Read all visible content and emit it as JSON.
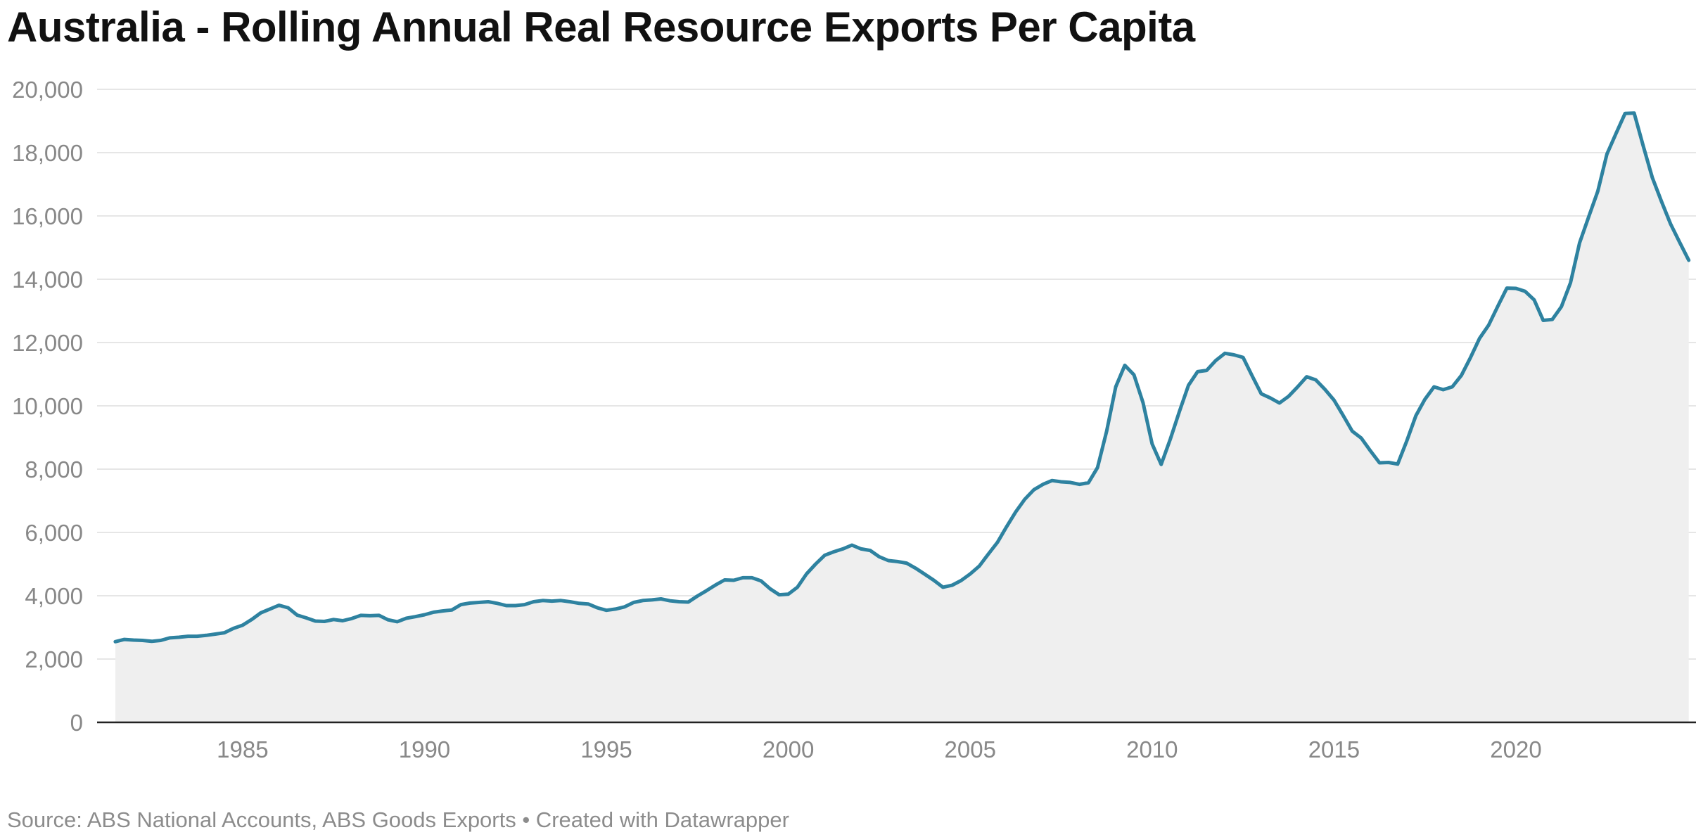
{
  "chart_data": {
    "type": "area",
    "title": "Australia - Rolling Annual Real Resource Exports Per Capita",
    "source": "Source: ABS National Accounts, ABS Goods Exports • Created with Datawrapper",
    "xlabel": "",
    "ylabel": "",
    "xlim": [
      1981.0,
      2024.95
    ],
    "ylim": [
      0,
      20000
    ],
    "y_ticks": [
      0,
      2000,
      4000,
      6000,
      8000,
      10000,
      12000,
      14000,
      16000,
      18000,
      20000
    ],
    "y_tick_labels": [
      "0",
      "2,000",
      "4,000",
      "6,000",
      "8,000",
      "10,000",
      "12,000",
      "14,000",
      "16,000",
      "18,000",
      "20,000"
    ],
    "x_ticks": [
      1985,
      1990,
      1995,
      2000,
      2005,
      2010,
      2015,
      2020
    ],
    "x_tick_labels": [
      "1985",
      "1990",
      "1995",
      "2000",
      "2005",
      "2010",
      "2015",
      "2020"
    ],
    "grid": true,
    "colors": {
      "line": "#2e82a0",
      "area": "#efefef",
      "grid": "#dddddd",
      "axis": "#222222"
    },
    "series": [
      {
        "name": "Rolling annual real resource exports per capita",
        "x": [
          1981.5,
          1981.75,
          1982.0,
          1982.25,
          1982.5,
          1982.75,
          1983.0,
          1983.25,
          1983.5,
          1983.75,
          1984.0,
          1984.25,
          1984.5,
          1984.75,
          1985.0,
          1985.25,
          1985.5,
          1985.75,
          1986.0,
          1986.25,
          1986.5,
          1986.75,
          1987.0,
          1987.25,
          1987.5,
          1987.75,
          1988.0,
          1988.25,
          1988.5,
          1988.75,
          1989.0,
          1989.25,
          1989.5,
          1989.75,
          1990.0,
          1990.25,
          1990.5,
          1990.75,
          1991.0,
          1991.25,
          1991.5,
          1991.75,
          1992.0,
          1992.25,
          1992.5,
          1992.75,
          1993.0,
          1993.25,
          1993.5,
          1993.75,
          1994.0,
          1994.25,
          1994.5,
          1994.75,
          1995.0,
          1995.25,
          1995.5,
          1995.75,
          1996.0,
          1996.25,
          1996.5,
          1996.75,
          1997.0,
          1997.25,
          1997.5,
          1997.75,
          1998.0,
          1998.25,
          1998.5,
          1998.75,
          1999.0,
          1999.25,
          1999.5,
          1999.75,
          2000.0,
          2000.25,
          2000.5,
          2000.75,
          2001.0,
          2001.25,
          2001.5,
          2001.75,
          2002.0,
          2002.25,
          2002.5,
          2002.75,
          2003.0,
          2003.25,
          2003.5,
          2003.75,
          2004.0,
          2004.25,
          2004.5,
          2004.75,
          2005.0,
          2005.25,
          2005.5,
          2005.75,
          2006.0,
          2006.25,
          2006.5,
          2006.75,
          2007.0,
          2007.25,
          2007.5,
          2007.75,
          2008.0,
          2008.25,
          2008.5,
          2008.75,
          2009.0,
          2009.25,
          2009.5,
          2009.75,
          2010.0,
          2010.25,
          2010.5,
          2010.75,
          2011.0,
          2011.25,
          2011.5,
          2011.75,
          2012.0,
          2012.25,
          2012.5,
          2012.75,
          2013.0,
          2013.25,
          2013.5,
          2013.75,
          2014.0,
          2014.25,
          2014.5,
          2014.75,
          2015.0,
          2015.25,
          2015.5,
          2015.75,
          2016.0,
          2016.25,
          2016.5,
          2016.75,
          2017.0,
          2017.25,
          2017.5,
          2017.75,
          2018.0,
          2018.25,
          2018.5,
          2018.75,
          2019.0,
          2019.25,
          2019.5,
          2019.75,
          2020.0,
          2020.25,
          2020.5,
          2020.75,
          2021.0,
          2021.25,
          2021.5,
          2021.75,
          2022.0,
          2022.25,
          2022.5,
          2022.75,
          2023.0,
          2023.25,
          2023.5,
          2023.75,
          2024.0,
          2024.25,
          2024.5,
          2024.75
        ],
        "values": [
          2550,
          2620,
          2600,
          2590,
          2560,
          2590,
          2670,
          2690,
          2720,
          2720,
          2750,
          2790,
          2830,
          2970,
          3070,
          3250,
          3460,
          3580,
          3700,
          3620,
          3390,
          3300,
          3200,
          3190,
          3250,
          3210,
          3280,
          3380,
          3370,
          3380,
          3240,
          3180,
          3290,
          3340,
          3400,
          3480,
          3520,
          3550,
          3720,
          3770,
          3790,
          3810,
          3760,
          3690,
          3690,
          3720,
          3810,
          3850,
          3830,
          3850,
          3810,
          3760,
          3740,
          3620,
          3540,
          3580,
          3650,
          3790,
          3850,
          3870,
          3900,
          3840,
          3810,
          3800,
          3990,
          4160,
          4340,
          4500,
          4490,
          4570,
          4570,
          4470,
          4220,
          4030,
          4050,
          4270,
          4690,
          5000,
          5280,
          5390,
          5480,
          5600,
          5480,
          5430,
          5230,
          5110,
          5080,
          5030,
          4870,
          4680,
          4490,
          4270,
          4330,
          4480,
          4690,
          4940,
          5320,
          5690,
          6180,
          6650,
          7050,
          7350,
          7520,
          7640,
          7600,
          7580,
          7520,
          7570,
          8050,
          9200,
          10600,
          11280,
          10980,
          10100,
          8800,
          8150,
          8950,
          9820,
          10650,
          11080,
          11120,
          11430,
          11660,
          11610,
          11530,
          10950,
          10380,
          10250,
          10090,
          10300,
          10600,
          10920,
          10820,
          10520,
          10180,
          9700,
          9200,
          8980,
          8580,
          8200,
          8210,
          8160,
          8890,
          9690,
          10210,
          10600,
          10510,
          10600,
          10960,
          11520,
          12130,
          12550,
          13140,
          13720,
          13710,
          13620,
          13350,
          12700,
          12730,
          13130,
          13890,
          15150,
          15970,
          16780,
          17950,
          18600,
          19240,
          19250,
          18210,
          17210,
          16460,
          15750,
          15170,
          14600
        ]
      }
    ]
  }
}
